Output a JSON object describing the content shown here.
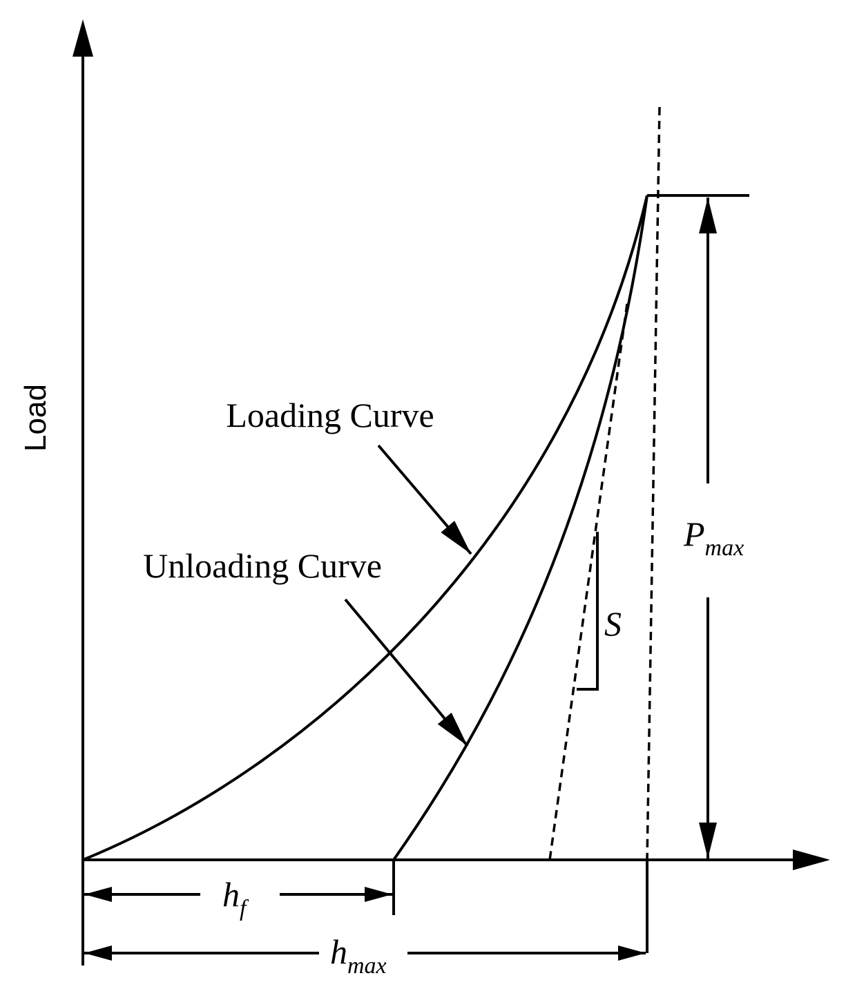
{
  "axis_label": "Load",
  "annotations": {
    "loading_curve": "Loading Curve",
    "unloading_curve": "Unloading Curve",
    "stiffness": "S"
  },
  "dimensions": {
    "h_f": {
      "symbol": "h",
      "subscript": "f"
    },
    "h_max": {
      "symbol": "h",
      "subscript": "max"
    },
    "P_max": {
      "symbol": "P",
      "subscript": "max"
    }
  }
}
